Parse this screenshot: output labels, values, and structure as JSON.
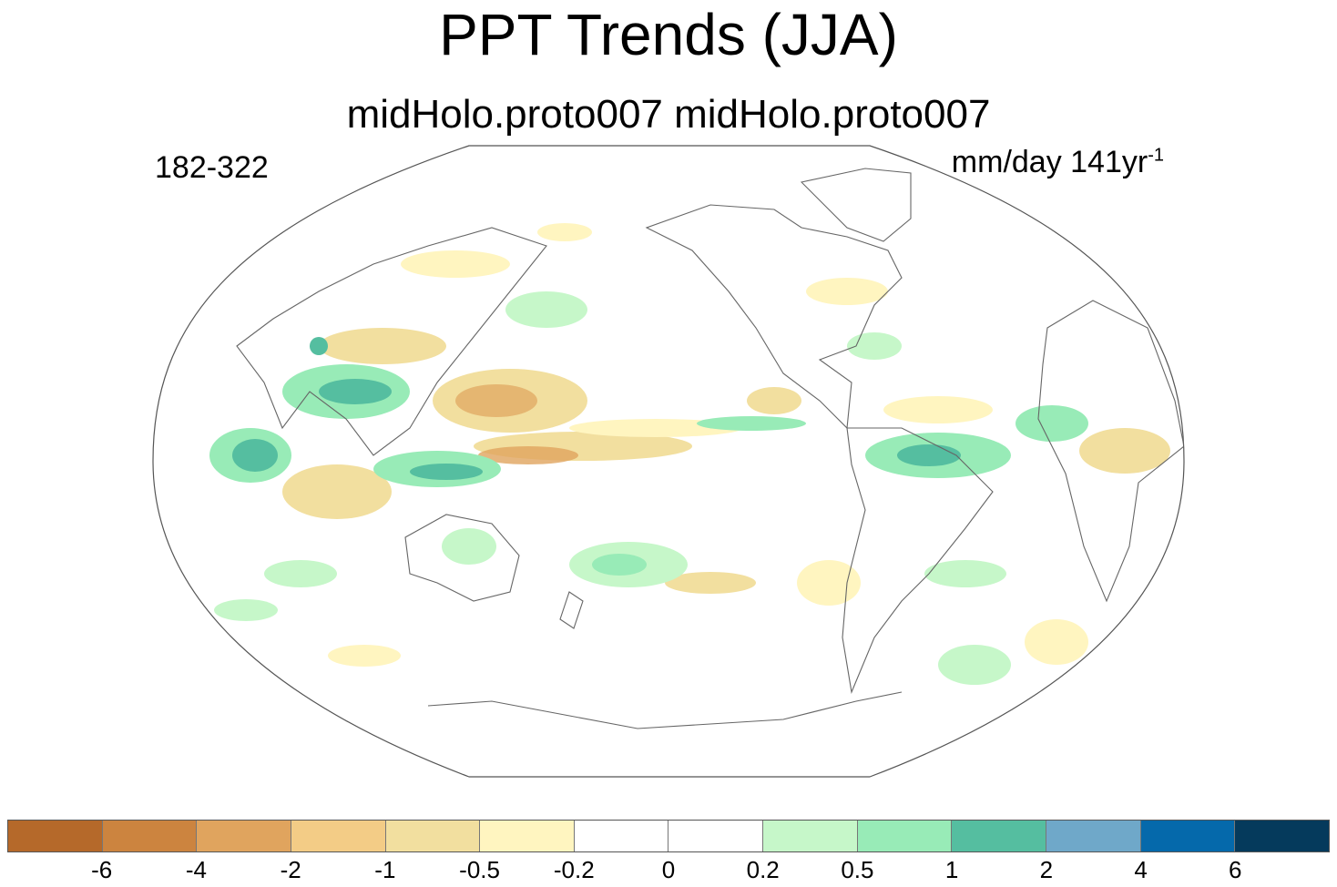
{
  "header": {
    "title": "PPT Trends (JJA)",
    "subtitle": "midHolo.proto007  midHolo.proto007",
    "left_label": "182-322",
    "units_label": "mm/day 141yr",
    "units_exponent": "-1"
  },
  "map": {
    "projection": "Robinson",
    "center": "Pacific",
    "variable": "precipitation trend"
  },
  "colorbar": {
    "colors": [
      "#b5692a",
      "#cc843f",
      "#e0a45e",
      "#f3cc86",
      "#f2df9f",
      "#fff5c0",
      "#ffffff",
      "#ffffff",
      "#c6f7c9",
      "#98ebb7",
      "#55bea0",
      "#6fa8c9",
      "#0569ab",
      "#053a5c"
    ],
    "labels": [
      "-6",
      "-4",
      "-2",
      "-1",
      "-0.5",
      "-0.2",
      "0",
      "0.2",
      "0.5",
      "1",
      "2",
      "4",
      "6"
    ]
  }
}
